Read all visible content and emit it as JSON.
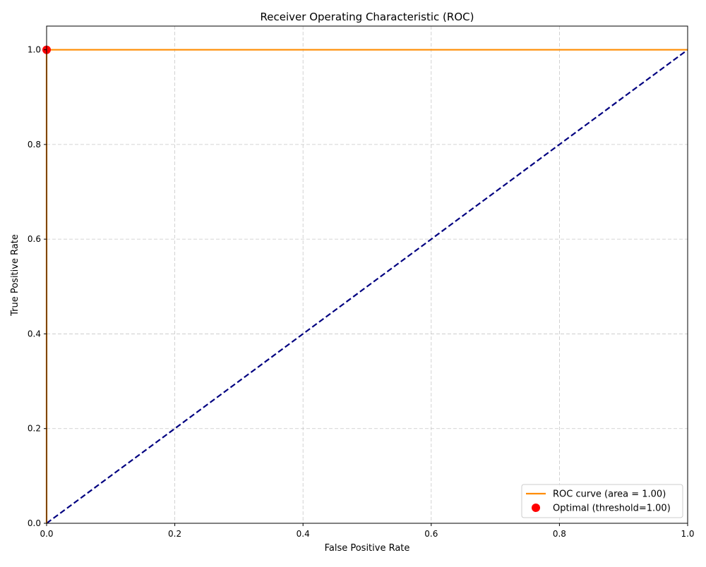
{
  "chart_data": {
    "type": "line",
    "title": "Receiver Operating Characteristic (ROC)",
    "xlabel": "False Positive Rate",
    "ylabel": "True Positive Rate",
    "xlim": [
      0.0,
      1.0
    ],
    "ylim": [
      0.0,
      1.05
    ],
    "xticks": [
      0.0,
      0.2,
      0.4,
      0.6,
      0.8,
      1.0
    ],
    "yticks": [
      0.0,
      0.2,
      0.4,
      0.6,
      0.8,
      1.0
    ],
    "xtick_labels": [
      "0.0",
      "0.2",
      "0.4",
      "0.6",
      "0.8",
      "1.0"
    ],
    "ytick_labels": [
      "0.0",
      "0.2",
      "0.4",
      "0.6",
      "0.8",
      "1.0"
    ],
    "grid": true,
    "legend_position": "lower-right",
    "series": [
      {
        "name": "ROC curve (area = 1.00)",
        "kind": "line",
        "color": "#ff8c00",
        "dash": "solid",
        "x": [
          0.0,
          0.0,
          1.0
        ],
        "y": [
          0.0,
          1.0,
          1.0
        ]
      },
      {
        "kind": "line",
        "color": "#000080",
        "dash": "dashed",
        "x": [
          0.0,
          1.0
        ],
        "y": [
          0.0,
          1.0
        ]
      },
      {
        "name": "Optimal (threshold=1.00)",
        "kind": "point",
        "color": "#ff0000",
        "x": [
          0.0
        ],
        "y": [
          1.0
        ]
      }
    ],
    "legend": [
      {
        "label": "ROC curve (area = 1.00)",
        "marker": "line",
        "color": "#ff8c00"
      },
      {
        "label": "Optimal (threshold=1.00)",
        "marker": "dot",
        "color": "#ff0000"
      }
    ]
  }
}
